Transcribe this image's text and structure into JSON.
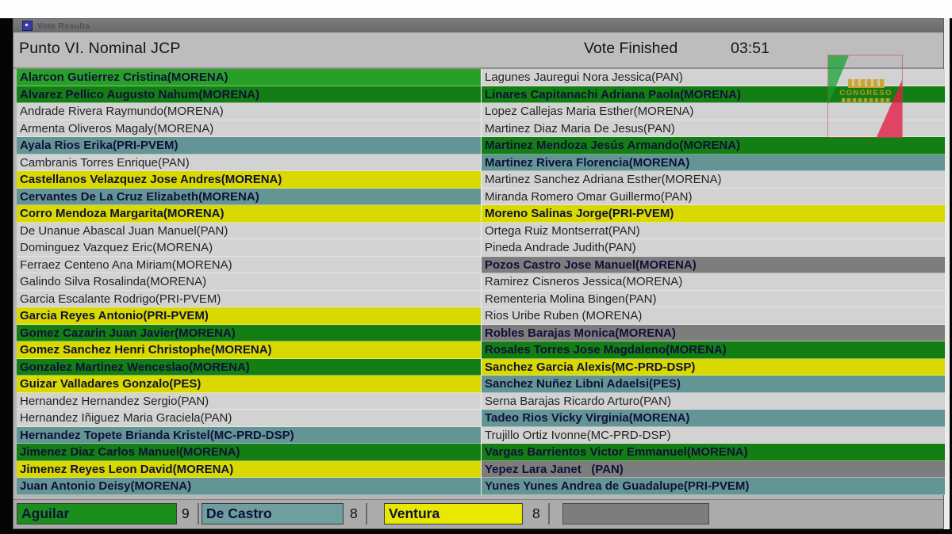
{
  "window": {
    "titlebar": {
      "title": "Vote Results"
    },
    "header": {
      "title": "Punto VI. Nominal JCP",
      "status": "Vote Finished",
      "timer": "03:51"
    }
  },
  "colors": {
    "green": "#28a028",
    "green_dark": "#137e13",
    "teal": "#649595",
    "yellow": "#d9d900",
    "gray": "#d2d2d2",
    "dark": "#7d7d7d",
    "footer_green": "#1b8f1b",
    "footer_teal": "#6f9e9e",
    "footer_yellow": "#e8e800"
  },
  "roll": {
    "left": [
      {
        "name": "Alarcon Gutierrez Cristina(MORENA)",
        "vote": "green"
      },
      {
        "name": "Alvarez Pellico Augusto Nahum(MORENA)",
        "vote": "green_dark"
      },
      {
        "name": "Andrade Rivera Raymundo(MORENA)",
        "vote": "gray"
      },
      {
        "name": "Armenta Oliveros Magaly(MORENA)",
        "vote": "gray"
      },
      {
        "name": "Ayala Rios Erika(PRI-PVEM)",
        "vote": "teal"
      },
      {
        "name": "Cambranis Torres Enrique(PAN)",
        "vote": "gray"
      },
      {
        "name": "Castellanos Velazquez Jose Andres(MORENA)",
        "vote": "yellow"
      },
      {
        "name": "Cervantes De La Cruz Elizabeth(MORENA)",
        "vote": "teal"
      },
      {
        "name": "Corro Mendoza Margarita(MORENA)",
        "vote": "yellow"
      },
      {
        "name": "De Unanue Abascal Juan Manuel(PAN)",
        "vote": "gray"
      },
      {
        "name": "Dominguez Vazquez Eric(MORENA)",
        "vote": "gray"
      },
      {
        "name": "Ferraez Centeno Ana Miriam(MORENA)",
        "vote": "gray"
      },
      {
        "name": "Galindo Silva Rosalinda(MORENA)",
        "vote": "gray"
      },
      {
        "name": "Garcia Escalante Rodrigo(PRI-PVEM)",
        "vote": "gray"
      },
      {
        "name": "Garcia Reyes Antonio(PRI-PVEM)",
        "vote": "yellow"
      },
      {
        "name": "Gomez Cazarin Juan Javier(MORENA)",
        "vote": "green_dark"
      },
      {
        "name": "Gomez Sanchez Henri Christophe(MORENA)",
        "vote": "yellow"
      },
      {
        "name": "Gonzalez Martinez Wenceslao(MORENA)",
        "vote": "green_dark"
      },
      {
        "name": "Guizar Valladares Gonzalo(PES)",
        "vote": "yellow"
      },
      {
        "name": "Hernandez Hernandez Sergio(PAN)",
        "vote": "gray"
      },
      {
        "name": "Hernandez Iñiguez Maria Graciela(PAN)",
        "vote": "gray"
      },
      {
        "name": "Hernandez Topete Brianda Kristel(MC-PRD-DSP)",
        "vote": "teal"
      },
      {
        "name": "Jimenez Diaz Carlos Manuel(MORENA)",
        "vote": "green_dark"
      },
      {
        "name": "Jimenez Reyes Leon David(MORENA)",
        "vote": "yellow"
      },
      {
        "name": "Juan Antonio Deisy(MORENA)",
        "vote": "teal"
      }
    ],
    "right": [
      {
        "name": "Lagunes Jauregui Nora Jessica(PAN)",
        "vote": "gray"
      },
      {
        "name": "Linares Capitanachi Adriana Paola(MORENA)",
        "vote": "green_dark"
      },
      {
        "name": "Lopez Callejas Maria Esther(MORENA)",
        "vote": "gray"
      },
      {
        "name": "Martinez Diaz Maria De Jesus(PAN)",
        "vote": "gray"
      },
      {
        "name": "Martinez Mendoza Jesús Armando(MORENA)",
        "vote": "green_dark"
      },
      {
        "name": "Martinez Rivera Florencia(MORENA)",
        "vote": "teal"
      },
      {
        "name": "Martinez Sanchez Adriana Esther(MORENA)",
        "vote": "gray"
      },
      {
        "name": "Miranda Romero Omar Guillermo(PAN)",
        "vote": "gray"
      },
      {
        "name": "Moreno Salinas Jorge(PRI-PVEM)",
        "vote": "yellow"
      },
      {
        "name": "Ortega Ruiz Montserrat(PAN)",
        "vote": "gray"
      },
      {
        "name": "Pineda Andrade Judith(PAN)",
        "vote": "gray"
      },
      {
        "name": "Pozos Castro Jose Manuel(MORENA)",
        "vote": "dark"
      },
      {
        "name": "Ramirez Cisneros Jessica(MORENA)",
        "vote": "gray"
      },
      {
        "name": "Rementeria Molina Bingen(PAN)",
        "vote": "gray"
      },
      {
        "name": "Rios Uribe Ruben (MORENA)",
        "vote": "gray"
      },
      {
        "name": "Robles Barajas Monica(MORENA)",
        "vote": "dark"
      },
      {
        "name": "Rosales Torres Jose Magdaleno(MORENA)",
        "vote": "green_dark"
      },
      {
        "name": "Sanchez Garcia Alexis(MC-PRD-DSP)",
        "vote": "yellow"
      },
      {
        "name": "Sanchez Nuñez Libni Adaelsi(PES)",
        "vote": "teal"
      },
      {
        "name": "Serna Barajas Ricardo Arturo(PAN)",
        "vote": "gray"
      },
      {
        "name": "Tadeo Rios Vicky Virginia(MORENA)",
        "vote": "teal"
      },
      {
        "name": "Trujillo Ortiz Ivonne(MC-PRD-DSP)",
        "vote": "gray"
      },
      {
        "name": "Vargas Barrientos Victor Emmanuel(MORENA)",
        "vote": "green_dark"
      },
      {
        "name": "Yepez Lara Janet   (PAN)",
        "vote": "dark"
      },
      {
        "name": "Yunes Yunes Andrea de Guadalupe(PRI-PVEM)",
        "vote": "teal"
      }
    ]
  },
  "footer": {
    "tallies": [
      {
        "label": "Aguilar",
        "count": "9",
        "color_key": "green"
      },
      {
        "label": "De Castro",
        "count": "8",
        "color_key": "teal"
      },
      {
        "label": "Ventura",
        "count": "8",
        "color_key": "yellow"
      },
      {
        "label": "",
        "count": "",
        "color_key": "dark"
      }
    ]
  },
  "watermark": {
    "text": "CONGRESO"
  }
}
